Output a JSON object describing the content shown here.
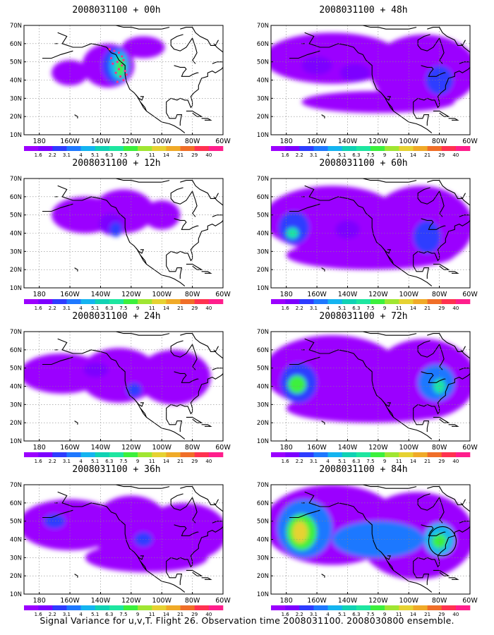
{
  "chart_data": {
    "type": "heatmap",
    "lat_ticks": [
      "70N",
      "60N",
      "50N",
      "40N",
      "30N",
      "20N",
      "10N"
    ],
    "lon_ticks": [
      "180",
      "160W",
      "140W",
      "120W",
      "100W",
      "80W",
      "60W"
    ],
    "colorbar_levels": [
      "1.6",
      "2.2",
      "3.1",
      "4",
      "5.1",
      "6.3",
      "7.5",
      "9",
      "11",
      "14",
      "21",
      "29",
      "40"
    ],
    "colorbar_colors": [
      "#9b00ff",
      "#7d00ff",
      "#2e3cff",
      "#1e78ff",
      "#14b4f0",
      "#10d2b4",
      "#1ee6a0",
      "#3cf03c",
      "#a0e632",
      "#e6d232",
      "#f0aa28",
      "#f06e28",
      "#ff3250",
      "#ff1e8c"
    ],
    "panels": [
      {
        "title": "2008031100 + 00h",
        "col": 0,
        "row": 0,
        "blobs": [
          {
            "lon": -160,
            "lat": 44,
            "rlon": 12,
            "rlat": 7,
            "level": 0
          },
          {
            "lon": -135,
            "lat": 48,
            "rlon": 17,
            "rlat": 12,
            "level": 0
          },
          {
            "lon": -112,
            "lat": 58,
            "rlon": 14,
            "rlat": 6,
            "level": 0
          },
          {
            "lon": -130,
            "lat": 48,
            "rlon": 9,
            "rlat": 10,
            "level": 2
          },
          {
            "lon": -128,
            "lat": 48,
            "rlon": 6,
            "rlat": 8,
            "level": 4
          },
          {
            "lon": -127,
            "lat": 47,
            "rlon": 3,
            "rlat": 6,
            "level": 7
          }
        ],
        "points": [
          [
            -131,
            56
          ],
          [
            -128,
            55
          ],
          [
            -126,
            53
          ],
          [
            -133,
            52
          ],
          [
            -125,
            51
          ],
          [
            -129,
            50
          ],
          [
            -132,
            49
          ],
          [
            -126,
            48
          ],
          [
            -128,
            46
          ],
          [
            -124,
            45
          ],
          [
            -130,
            44
          ],
          [
            -127,
            42
          ],
          [
            -125,
            40
          ],
          [
            -129,
            39
          ],
          [
            -134,
            57
          ],
          [
            -123,
            43
          ]
        ],
        "circle": null
      },
      {
        "title": "2008031100 + 12h",
        "col": 0,
        "row": 1,
        "blobs": [
          {
            "lon": -150,
            "lat": 50,
            "rlon": 22,
            "rlat": 10,
            "level": 0
          },
          {
            "lon": -125,
            "lat": 52,
            "rlon": 20,
            "rlat": 12,
            "level": 0
          },
          {
            "lon": -100,
            "lat": 50,
            "rlon": 12,
            "rlat": 8,
            "level": 0
          },
          {
            "lon": -133,
            "lat": 45,
            "rlon": 8,
            "rlat": 6,
            "level": 1
          },
          {
            "lon": -130,
            "lat": 42,
            "rlon": 4,
            "rlat": 4,
            "level": 2
          }
        ],
        "points": [],
        "circle": null
      },
      {
        "title": "2008031100 + 24h",
        "col": 0,
        "row": 2,
        "blobs": [
          {
            "lon": -165,
            "lat": 47,
            "rlon": 28,
            "rlat": 11,
            "level": 0
          },
          {
            "lon": -128,
            "lat": 46,
            "rlon": 26,
            "rlat": 15,
            "level": 0
          },
          {
            "lon": -92,
            "lat": 45,
            "rlon": 24,
            "rlat": 15,
            "level": 0
          },
          {
            "lon": -143,
            "lat": 49,
            "rlon": 8,
            "rlat": 4,
            "level": 1
          },
          {
            "lon": -118,
            "lat": 38,
            "rlon": 5,
            "rlat": 4,
            "level": 2
          }
        ],
        "points": [],
        "circle": null
      },
      {
        "title": "2008031100 + 36h",
        "col": 0,
        "row": 3,
        "blobs": [
          {
            "lon": -160,
            "lat": 48,
            "rlon": 34,
            "rlat": 14,
            "level": 0
          },
          {
            "lon": -120,
            "lat": 46,
            "rlon": 26,
            "rlat": 18,
            "level": 0
          },
          {
            "lon": -85,
            "lat": 44,
            "rlon": 28,
            "rlat": 16,
            "level": 0
          },
          {
            "lon": -110,
            "lat": 30,
            "rlon": 40,
            "rlat": 8,
            "level": 0
          },
          {
            "lon": -170,
            "lat": 50,
            "rlon": 7,
            "rlat": 4,
            "level": 2
          },
          {
            "lon": -112,
            "lat": 40,
            "rlon": 6,
            "rlat": 4,
            "level": 2
          }
        ],
        "points": [],
        "circle": null
      },
      {
        "title": "2008031100 + 48h",
        "col": 1,
        "row": 0,
        "blobs": [
          {
            "lon": -150,
            "lat": 52,
            "rlon": 45,
            "rlat": 14,
            "level": 0
          },
          {
            "lon": -90,
            "lat": 45,
            "rlon": 35,
            "rlat": 20,
            "level": 0
          },
          {
            "lon": -120,
            "lat": 28,
            "rlon": 50,
            "rlat": 6,
            "level": 0
          },
          {
            "lon": -160,
            "lat": 48,
            "rlon": 10,
            "rlat": 5,
            "level": 1
          },
          {
            "lon": -135,
            "lat": 44,
            "rlon": 10,
            "rlat": 5,
            "level": 1
          },
          {
            "lon": -80,
            "lat": 40,
            "rlon": 9,
            "rlat": 8,
            "level": 2
          }
        ],
        "points": [],
        "circle": null
      },
      {
        "title": "2008031100 + 60h",
        "col": 1,
        "row": 1,
        "blobs": [
          {
            "lon": -150,
            "lat": 48,
            "rlon": 45,
            "rlat": 18,
            "level": 0
          },
          {
            "lon": -92,
            "lat": 44,
            "rlon": 34,
            "rlat": 22,
            "level": 0
          },
          {
            "lon": -125,
            "lat": 28,
            "rlon": 55,
            "rlat": 8,
            "level": 0
          },
          {
            "lon": -175,
            "lat": 43,
            "rlon": 10,
            "rlat": 9,
            "level": 2
          },
          {
            "lon": -176,
            "lat": 40,
            "rlon": 4,
            "rlat": 3,
            "level": 6
          },
          {
            "lon": -88,
            "lat": 38,
            "rlon": 9,
            "rlat": 9,
            "level": 2
          },
          {
            "lon": -140,
            "lat": 42,
            "rlon": 8,
            "rlat": 5,
            "level": 1
          }
        ],
        "points": [],
        "circle": null
      },
      {
        "title": "2008031100 + 72h",
        "col": 1,
        "row": 2,
        "blobs": [
          {
            "lon": -150,
            "lat": 48,
            "rlon": 45,
            "rlat": 20,
            "level": 0
          },
          {
            "lon": -90,
            "lat": 44,
            "rlon": 34,
            "rlat": 22,
            "level": 0
          },
          {
            "lon": -125,
            "lat": 28,
            "rlon": 55,
            "rlat": 8,
            "level": 0
          },
          {
            "lon": -172,
            "lat": 42,
            "rlon": 12,
            "rlat": 11,
            "level": 2
          },
          {
            "lon": -173,
            "lat": 41,
            "rlon": 6,
            "rlat": 5,
            "level": 7
          },
          {
            "lon": -82,
            "lat": 42,
            "rlon": 12,
            "rlat": 10,
            "level": 3
          },
          {
            "lon": -80,
            "lat": 40,
            "rlon": 4,
            "rlat": 4,
            "level": 6
          }
        ],
        "points": [],
        "circle": null
      },
      {
        "title": "2008031100 + 84h",
        "col": 1,
        "row": 3,
        "blobs": [
          {
            "lon": -150,
            "lat": 48,
            "rlon": 45,
            "rlat": 22,
            "level": 0
          },
          {
            "lon": -95,
            "lat": 42,
            "rlon": 38,
            "rlat": 24,
            "level": 0
          },
          {
            "lon": -168,
            "lat": 46,
            "rlon": 18,
            "rlat": 16,
            "level": 3
          },
          {
            "lon": -170,
            "lat": 44,
            "rlon": 10,
            "rlat": 10,
            "level": 7
          },
          {
            "lon": -171,
            "lat": 44,
            "rlon": 5,
            "rlat": 6,
            "level": 9
          },
          {
            "lon": -120,
            "lat": 40,
            "rlon": 30,
            "rlat": 10,
            "level": 3
          },
          {
            "lon": -80,
            "lat": 40,
            "rlon": 10,
            "rlat": 9,
            "level": 4
          },
          {
            "lon": -80,
            "lat": 39,
            "rlon": 5,
            "rlat": 4,
            "level": 7
          }
        ],
        "points": [],
        "circle": {
          "lon": -78,
          "lat": 39,
          "rlon": 9,
          "rlat": 8
        }
      }
    ]
  },
  "footer": "Signal Variance for u,v,T. Flight 26. Observation time 2008031100. 2008030800 ensemble."
}
